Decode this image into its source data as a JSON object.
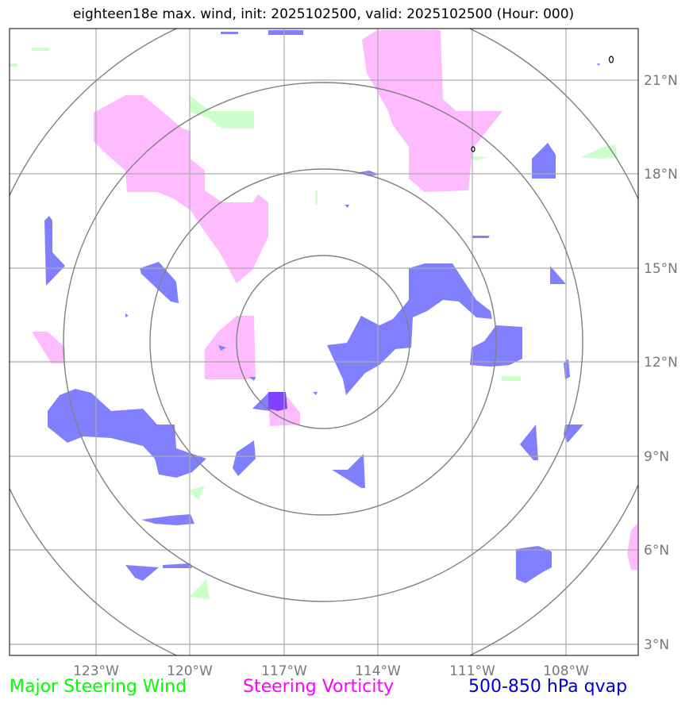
{
  "title": "eighteen18e max. wind, init: 2025102500, valid: 2025102500 (Hour: 000)",
  "axes": {
    "lon_ticks": [
      "123°W",
      "120°W",
      "117°W",
      "114°W",
      "111°W",
      "108°W"
    ],
    "lat_ticks": [
      "21°N",
      "18°N",
      "15°N",
      "12°N",
      "9°N",
      "6°N",
      "3°N"
    ]
  },
  "legend": [
    {
      "label": "Major Steering Wind",
      "color": "#00ff00"
    },
    {
      "label": "Steering Vorticity",
      "color": "#ff00ff"
    },
    {
      "label": "500-850 hPa qvap",
      "color": "#0000cc"
    }
  ],
  "colors": {
    "wind_fill": "#ccffcc",
    "vorticity_fill": "#ffbbff",
    "qvap_fill": "#8080ff",
    "overlap_fill": "#8040ff",
    "grid": "#aaaaaa",
    "range_rings": "#808080"
  }
}
